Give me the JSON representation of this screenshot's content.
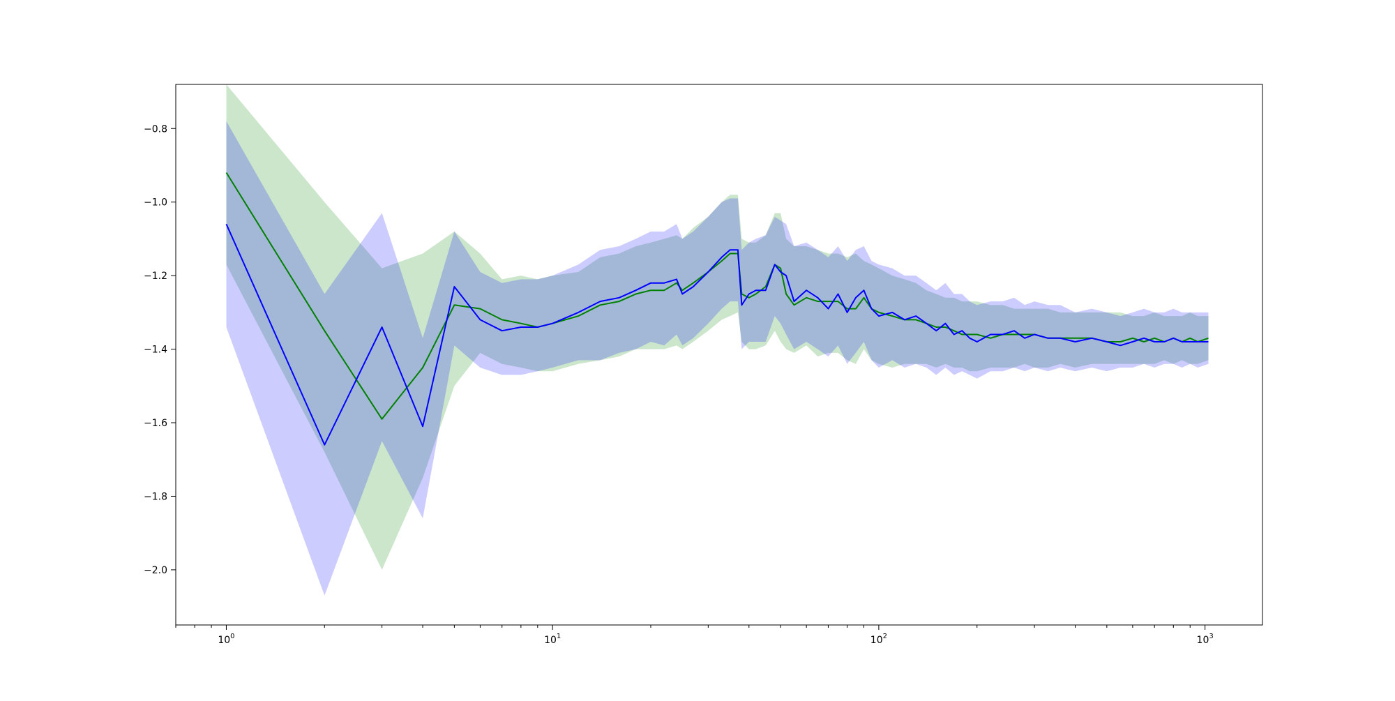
{
  "chart_data": {
    "type": "line",
    "title": "",
    "xlabel": "",
    "ylabel": "",
    "xscale": "log",
    "xlim": [
      0.7,
      1500
    ],
    "ylim": [
      -2.15,
      -0.68
    ],
    "grid": false,
    "legend": "none",
    "x_ticks": [
      {
        "value": 1,
        "base": "10",
        "exp": "0"
      },
      {
        "value": 10,
        "base": "10",
        "exp": "1"
      },
      {
        "value": 100,
        "base": "10",
        "exp": "2"
      },
      {
        "value": 1000,
        "base": "10",
        "exp": "3"
      }
    ],
    "y_ticks": [
      {
        "value": -0.8,
        "label": "−0.8"
      },
      {
        "value": -1.0,
        "label": "−1.0"
      },
      {
        "value": -1.2,
        "label": "−1.2"
      },
      {
        "value": -1.4,
        "label": "−1.4"
      },
      {
        "value": -1.6,
        "label": "−1.6"
      },
      {
        "value": -1.8,
        "label": "−1.8"
      },
      {
        "value": -2.0,
        "label": "−2.0"
      }
    ],
    "series": [
      {
        "color": "#008000",
        "band_color": "#008000",
        "band_opacity": 0.2,
        "x": [
          1,
          2,
          3,
          4,
          5,
          6,
          7,
          8,
          9,
          10,
          12,
          14,
          16,
          18,
          20,
          22,
          24,
          25,
          27,
          30,
          33,
          35,
          37,
          38,
          40,
          42,
          45,
          48,
          50,
          52,
          55,
          60,
          65,
          70,
          75,
          80,
          85,
          90,
          95,
          100,
          110,
          120,
          130,
          140,
          150,
          160,
          170,
          180,
          190,
          200,
          220,
          240,
          260,
          280,
          300,
          330,
          360,
          400,
          450,
          500,
          550,
          600,
          650,
          700,
          750,
          800,
          850,
          900,
          950,
          1024
        ],
        "y": [
          -0.92,
          -1.35,
          -1.59,
          -1.45,
          -1.28,
          -1.29,
          -1.32,
          -1.33,
          -1.34,
          -1.33,
          -1.31,
          -1.28,
          -1.27,
          -1.25,
          -1.24,
          -1.24,
          -1.22,
          -1.24,
          -1.22,
          -1.19,
          -1.16,
          -1.14,
          -1.14,
          -1.25,
          -1.26,
          -1.25,
          -1.23,
          -1.17,
          -1.18,
          -1.25,
          -1.28,
          -1.26,
          -1.27,
          -1.27,
          -1.27,
          -1.29,
          -1.29,
          -1.26,
          -1.29,
          -1.3,
          -1.31,
          -1.32,
          -1.32,
          -1.33,
          -1.34,
          -1.34,
          -1.35,
          -1.36,
          -1.36,
          -1.36,
          -1.37,
          -1.36,
          -1.36,
          -1.36,
          -1.36,
          -1.37,
          -1.37,
          -1.37,
          -1.37,
          -1.38,
          -1.38,
          -1.37,
          -1.38,
          -1.37,
          -1.38,
          -1.37,
          -1.38,
          -1.37,
          -1.38,
          -1.37
        ],
        "lower": [
          -1.17,
          -1.68,
          -2.0,
          -1.75,
          -1.5,
          -1.41,
          -1.44,
          -1.45,
          -1.46,
          -1.46,
          -1.44,
          -1.43,
          -1.42,
          -1.4,
          -1.4,
          -1.4,
          -1.39,
          -1.4,
          -1.38,
          -1.35,
          -1.32,
          -1.31,
          -1.3,
          -1.38,
          -1.4,
          -1.4,
          -1.39,
          -1.35,
          -1.38,
          -1.4,
          -1.41,
          -1.39,
          -1.42,
          -1.41,
          -1.41,
          -1.43,
          -1.44,
          -1.4,
          -1.43,
          -1.44,
          -1.45,
          -1.44,
          -1.44,
          -1.44,
          -1.45,
          -1.44,
          -1.45,
          -1.45,
          -1.46,
          -1.46,
          -1.45,
          -1.45,
          -1.45,
          -1.44,
          -1.45,
          -1.45,
          -1.44,
          -1.45,
          -1.44,
          -1.44,
          -1.44,
          -1.44,
          -1.44,
          -1.44,
          -1.43,
          -1.44,
          -1.43,
          -1.44,
          -1.44,
          -1.43
        ],
        "upper": [
          -0.68,
          -1.0,
          -1.18,
          -1.14,
          -1.08,
          -1.14,
          -1.21,
          -1.2,
          -1.21,
          -1.2,
          -1.19,
          -1.15,
          -1.14,
          -1.12,
          -1.11,
          -1.1,
          -1.09,
          -1.1,
          -1.07,
          -1.04,
          -1.0,
          -0.98,
          -0.98,
          -1.1,
          -1.11,
          -1.11,
          -1.09,
          -1.03,
          -1.03,
          -1.1,
          -1.12,
          -1.12,
          -1.13,
          -1.14,
          -1.14,
          -1.15,
          -1.14,
          -1.16,
          -1.17,
          -1.18,
          -1.2,
          -1.21,
          -1.22,
          -1.24,
          -1.25,
          -1.26,
          -1.26,
          -1.27,
          -1.27,
          -1.27,
          -1.28,
          -1.28,
          -1.29,
          -1.29,
          -1.29,
          -1.29,
          -1.3,
          -1.3,
          -1.3,
          -1.3,
          -1.3,
          -1.31,
          -1.31,
          -1.3,
          -1.31,
          -1.31,
          -1.31,
          -1.3,
          -1.31,
          -1.31
        ]
      },
      {
        "color": "#0000ff",
        "band_color": "#0000ff",
        "band_opacity": 0.2,
        "x": [
          1,
          2,
          3,
          4,
          5,
          6,
          7,
          8,
          9,
          10,
          12,
          14,
          16,
          18,
          20,
          22,
          24,
          25,
          27,
          30,
          33,
          35,
          37,
          38,
          40,
          42,
          45,
          48,
          50,
          52,
          55,
          60,
          65,
          70,
          75,
          80,
          85,
          90,
          95,
          100,
          110,
          120,
          130,
          140,
          150,
          160,
          170,
          180,
          190,
          200,
          220,
          240,
          260,
          280,
          300,
          330,
          360,
          400,
          450,
          500,
          550,
          600,
          650,
          700,
          750,
          800,
          850,
          900,
          950,
          1024
        ],
        "y": [
          -1.06,
          -1.66,
          -1.34,
          -1.61,
          -1.23,
          -1.32,
          -1.35,
          -1.34,
          -1.34,
          -1.33,
          -1.3,
          -1.27,
          -1.26,
          -1.24,
          -1.22,
          -1.22,
          -1.21,
          -1.25,
          -1.23,
          -1.19,
          -1.15,
          -1.13,
          -1.13,
          -1.28,
          -1.25,
          -1.24,
          -1.24,
          -1.17,
          -1.19,
          -1.2,
          -1.27,
          -1.24,
          -1.26,
          -1.29,
          -1.25,
          -1.3,
          -1.26,
          -1.24,
          -1.29,
          -1.31,
          -1.3,
          -1.32,
          -1.31,
          -1.33,
          -1.35,
          -1.33,
          -1.36,
          -1.35,
          -1.37,
          -1.38,
          -1.36,
          -1.36,
          -1.35,
          -1.37,
          -1.36,
          -1.37,
          -1.37,
          -1.38,
          -1.37,
          -1.38,
          -1.39,
          -1.38,
          -1.37,
          -1.38,
          -1.38,
          -1.37,
          -1.38,
          -1.38,
          -1.38,
          -1.38
        ],
        "lower": [
          -1.34,
          -2.07,
          -1.65,
          -1.86,
          -1.39,
          -1.45,
          -1.47,
          -1.47,
          -1.46,
          -1.45,
          -1.43,
          -1.43,
          -1.41,
          -1.4,
          -1.38,
          -1.39,
          -1.36,
          -1.39,
          -1.37,
          -1.33,
          -1.29,
          -1.27,
          -1.27,
          -1.4,
          -1.38,
          -1.38,
          -1.38,
          -1.31,
          -1.33,
          -1.36,
          -1.4,
          -1.38,
          -1.4,
          -1.42,
          -1.39,
          -1.44,
          -1.41,
          -1.38,
          -1.43,
          -1.45,
          -1.43,
          -1.45,
          -1.44,
          -1.45,
          -1.47,
          -1.45,
          -1.47,
          -1.46,
          -1.47,
          -1.48,
          -1.46,
          -1.46,
          -1.45,
          -1.46,
          -1.45,
          -1.46,
          -1.45,
          -1.46,
          -1.45,
          -1.46,
          -1.45,
          -1.45,
          -1.44,
          -1.45,
          -1.44,
          -1.44,
          -1.45,
          -1.44,
          -1.45,
          -1.44
        ],
        "upper": [
          -0.78,
          -1.25,
          -1.03,
          -1.37,
          -1.08,
          -1.19,
          -1.22,
          -1.21,
          -1.21,
          -1.2,
          -1.17,
          -1.13,
          -1.12,
          -1.1,
          -1.08,
          -1.08,
          -1.06,
          -1.1,
          -1.08,
          -1.04,
          -1.0,
          -0.99,
          -0.99,
          -1.13,
          -1.11,
          -1.1,
          -1.09,
          -1.04,
          -1.05,
          -1.06,
          -1.12,
          -1.11,
          -1.13,
          -1.15,
          -1.12,
          -1.16,
          -1.13,
          -1.12,
          -1.16,
          -1.17,
          -1.18,
          -1.2,
          -1.2,
          -1.22,
          -1.24,
          -1.22,
          -1.25,
          -1.25,
          -1.27,
          -1.28,
          -1.27,
          -1.27,
          -1.26,
          -1.28,
          -1.27,
          -1.28,
          -1.28,
          -1.3,
          -1.29,
          -1.3,
          -1.31,
          -1.3,
          -1.29,
          -1.3,
          -1.3,
          -1.29,
          -1.3,
          -1.3,
          -1.3,
          -1.3
        ]
      }
    ]
  }
}
